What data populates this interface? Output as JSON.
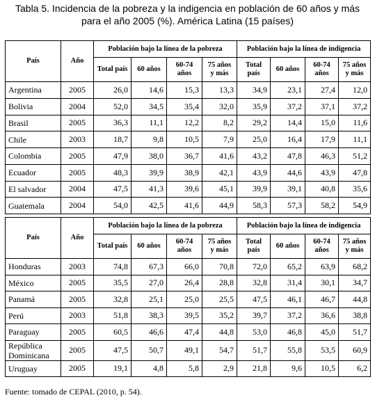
{
  "title": {
    "lines": [
      "Tabla 5. Incidencia de la pobreza y la indigencia en población de 60 años y más",
      "para el año 2005 (%). América Latina (15 países)"
    ]
  },
  "tables": [
    {
      "header": {
        "country": "País",
        "year": "Año",
        "groups": [
          "Población bajo la línea de la pobreza",
          "Población bajo la línea de indigencia"
        ],
        "subcolumns": [
          "Total país",
          "60 años",
          "60-74 años",
          "75 años y más",
          "Total país",
          "60 años",
          "60-74 años",
          "75 años y más"
        ]
      },
      "rows": [
        [
          "Argentina",
          "2005",
          "26,0",
          "14,6",
          "15,3",
          "13,3",
          "34,9",
          "23,1",
          "27,4",
          "12,0"
        ],
        [
          "Bolivia",
          "2004",
          "52,0",
          "34,5",
          "35,4",
          "32,0",
          "35,9",
          "37,2",
          "37,1",
          "37,2"
        ],
        [
          "Brasil",
          "2005",
          "36,3",
          "11,1",
          "12,2",
          "8,2",
          "29,2",
          "14,4",
          "15,0",
          "11,6"
        ],
        [
          "Chile",
          "2003",
          "18,7",
          "9,8",
          "10,5",
          "7,9",
          "25,0",
          "16,4",
          "17,9",
          "11,1"
        ],
        [
          "Colombia",
          "2005",
          "47,9",
          "38,0",
          "36,7",
          "41,6",
          "43,2",
          "47,8",
          "46,3",
          "51,2"
        ],
        [
          "Ecuador",
          "2005",
          "48,3",
          "39,9",
          "38,9",
          "42,1",
          "43,9",
          "44,6",
          "43,9",
          "47,8"
        ],
        [
          "El salvador",
          "2004",
          "47,5",
          "41,3",
          "39,6",
          "45,1",
          "39,9",
          "39,1",
          "40,8",
          "35,6"
        ],
        [
          "Guatemala",
          "2004",
          "54,0",
          "42,5",
          "41,6",
          "44,9",
          "58,3",
          "57,3",
          "58,2",
          "54,9"
        ]
      ]
    },
    {
      "header": {
        "country": "País",
        "year": "Año",
        "groups": [
          "Población bajo la línea de la pobreza",
          "Población bajo la línea de indigencia"
        ],
        "subcolumns": [
          "Total país",
          "60 años",
          "60-74 años",
          "75 años y más",
          "Total país",
          "60 años",
          "60-74 años",
          "75 años y más"
        ]
      },
      "rows": [
        [
          "Honduras",
          "2003",
          "74,8",
          "67,3",
          "66,0",
          "70,8",
          "72,0",
          "65,2",
          "63,9",
          "68,2"
        ],
        [
          "México",
          "2005",
          "35,5",
          "27,0",
          "26,4",
          "28,8",
          "32,8",
          "31,4",
          "30,1",
          "34,7"
        ],
        [
          "Panamá",
          "2005",
          "32,8",
          "25,1",
          "25,0",
          "25,5",
          "47,5",
          "46,1",
          "46,7",
          "44,8"
        ],
        [
          "Perú",
          "2003",
          "51,8",
          "38,3",
          "39,5",
          "35,2",
          "39,7",
          "37,2",
          "36,6",
          "38,8"
        ],
        [
          "Paraguay",
          "2005",
          "60,5",
          "46,6",
          "47,4",
          "44,8",
          "53,0",
          "46,8",
          "45,0",
          "51,7"
        ],
        [
          "República Dominicana",
          "2005",
          "47,5",
          "50,7",
          "49,1",
          "54,7",
          "51,7",
          "55,8",
          "53,5",
          "60,9"
        ],
        [
          "Uruguay",
          "2005",
          "19,1",
          "4,8",
          "5,8",
          "2,9",
          "21,8",
          "9,6",
          "10,5",
          "6,2"
        ]
      ]
    }
  ],
  "footnote": "Fuente: tomado de CEPAL (2010, p. 54)."
}
